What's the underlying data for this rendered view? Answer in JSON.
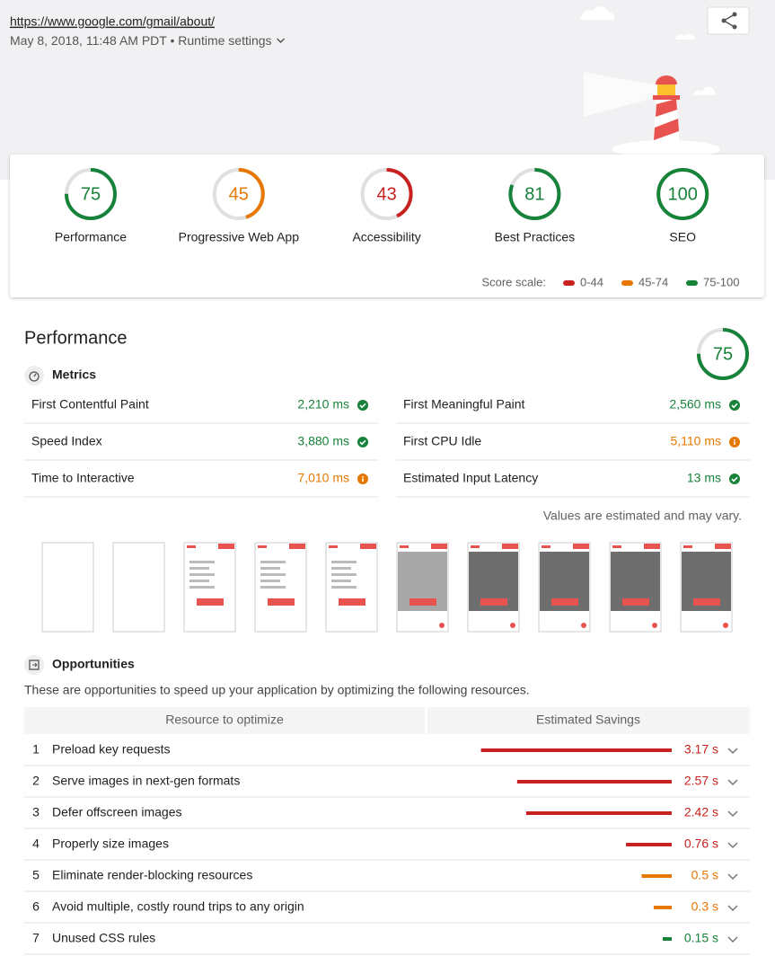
{
  "header": {
    "url": "https://www.google.com/gmail/about/",
    "date": "May 8, 2018, 11:48 AM PDT",
    "separator": "•",
    "runtime": "Runtime settings"
  },
  "scores": [
    {
      "label": "Performance",
      "value": 75,
      "color": "#178239"
    },
    {
      "label": "Progressive Web App",
      "value": 45,
      "color": "#e67700"
    },
    {
      "label": "Accessibility",
      "value": 43,
      "color": "#c7221f"
    },
    {
      "label": "Best Practices",
      "value": 81,
      "color": "#178239"
    },
    {
      "label": "SEO",
      "value": 100,
      "color": "#178239"
    }
  ],
  "scale_title": "Score scale:",
  "scale": [
    {
      "label": "0-44",
      "color": "#c7221f"
    },
    {
      "label": "45-74",
      "color": "#e67700"
    },
    {
      "label": "75-100",
      "color": "#178239"
    }
  ],
  "performance": {
    "title": "Performance",
    "score": 75,
    "color": "#178239",
    "metrics_title": "Metrics",
    "metrics": [
      {
        "name": "First Contentful Paint",
        "value": "2,210 ms",
        "status": "pass",
        "color": "#178239"
      },
      {
        "name": "First Meaningful Paint",
        "value": "2,560 ms",
        "status": "pass",
        "color": "#178239"
      },
      {
        "name": "Speed Index",
        "value": "3,880 ms",
        "status": "pass",
        "color": "#178239"
      },
      {
        "name": "First CPU Idle",
        "value": "5,110 ms",
        "status": "average",
        "color": "#e67700"
      },
      {
        "name": "Time to Interactive",
        "value": "7,010 ms",
        "status": "average",
        "color": "#e67700"
      },
      {
        "name": "Estimated Input Latency",
        "value": "13 ms",
        "status": "pass",
        "color": "#178239"
      }
    ],
    "note": "Values are estimated and may vary.",
    "opportunities_title": "Opportunities",
    "opportunities_description": "These are opportunities to speed up your application by optimizing the following resources.",
    "columns": [
      "Resource to optimize",
      "Estimated Savings"
    ],
    "opportunities": [
      {
        "index": 1,
        "name": "Preload key requests",
        "value": 3.17,
        "value_label": "3.17 s",
        "color": "#c7221f"
      },
      {
        "index": 2,
        "name": "Serve images in next-gen formats",
        "value": 2.57,
        "value_label": "2.57 s",
        "color": "#c7221f"
      },
      {
        "index": 3,
        "name": "Defer offscreen images",
        "value": 2.42,
        "value_label": "2.42 s",
        "color": "#c7221f"
      },
      {
        "index": 4,
        "name": "Properly size images",
        "value": 0.76,
        "value_label": "0.76 s",
        "color": "#c7221f"
      },
      {
        "index": 5,
        "name": "Eliminate render-blocking resources",
        "value": 0.5,
        "value_label": "0.5 s",
        "color": "#e67700"
      },
      {
        "index": 6,
        "name": "Avoid multiple, costly round trips to any origin",
        "value": 0.3,
        "value_label": "0.3 s",
        "color": "#e67700"
      },
      {
        "index": 7,
        "name": "Unused CSS rules",
        "value": 0.15,
        "value_label": "0.15 s",
        "color": "#178239"
      }
    ]
  }
}
